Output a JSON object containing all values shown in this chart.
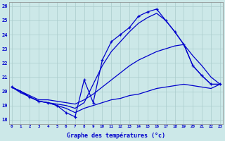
{
  "xlabel": "Graphe des températures (°c)",
  "bg_color": "#cce8e8",
  "grid_color": "#aacccc",
  "line_color": "#0000cc",
  "xlim": [
    -0.3,
    23.3
  ],
  "ylim": [
    17.7,
    26.3
  ],
  "yticks": [
    18,
    19,
    20,
    21,
    22,
    23,
    24,
    25,
    26
  ],
  "hours": [
    0,
    1,
    2,
    3,
    4,
    5,
    6,
    7,
    8,
    9,
    10,
    11,
    12,
    13,
    14,
    15,
    16,
    17,
    18,
    19,
    20,
    21,
    22,
    23
  ],
  "temp_actual": [
    20.3,
    20.0,
    19.6,
    19.3,
    19.2,
    19.0,
    18.5,
    18.2,
    20.8,
    19.2,
    22.2,
    23.5,
    24.0,
    24.5,
    25.3,
    25.6,
    25.8,
    25.0,
    24.2,
    23.3,
    21.8,
    21.1,
    20.5,
    20.5
  ],
  "temp_upper": [
    20.3,
    20.0,
    19.6,
    19.3,
    19.2,
    19.1,
    19.0,
    18.8,
    19.2,
    20.5,
    21.8,
    22.8,
    23.5,
    24.2,
    24.8,
    25.2,
    25.5,
    25.0,
    24.2,
    23.3,
    21.8,
    21.1,
    20.5,
    20.5
  ],
  "temp_mid": [
    20.3,
    20.0,
    19.7,
    19.4,
    19.4,
    19.3,
    19.2,
    19.1,
    19.4,
    19.8,
    20.3,
    20.8,
    21.3,
    21.8,
    22.2,
    22.5,
    22.8,
    23.0,
    23.2,
    23.3,
    22.5,
    21.8,
    21.0,
    20.5
  ],
  "temp_lower": [
    20.3,
    19.9,
    19.6,
    19.3,
    19.2,
    19.0,
    18.8,
    18.5,
    18.8,
    19.0,
    19.2,
    19.4,
    19.5,
    19.7,
    19.8,
    20.0,
    20.2,
    20.3,
    20.4,
    20.5,
    20.4,
    20.3,
    20.2,
    20.5
  ]
}
